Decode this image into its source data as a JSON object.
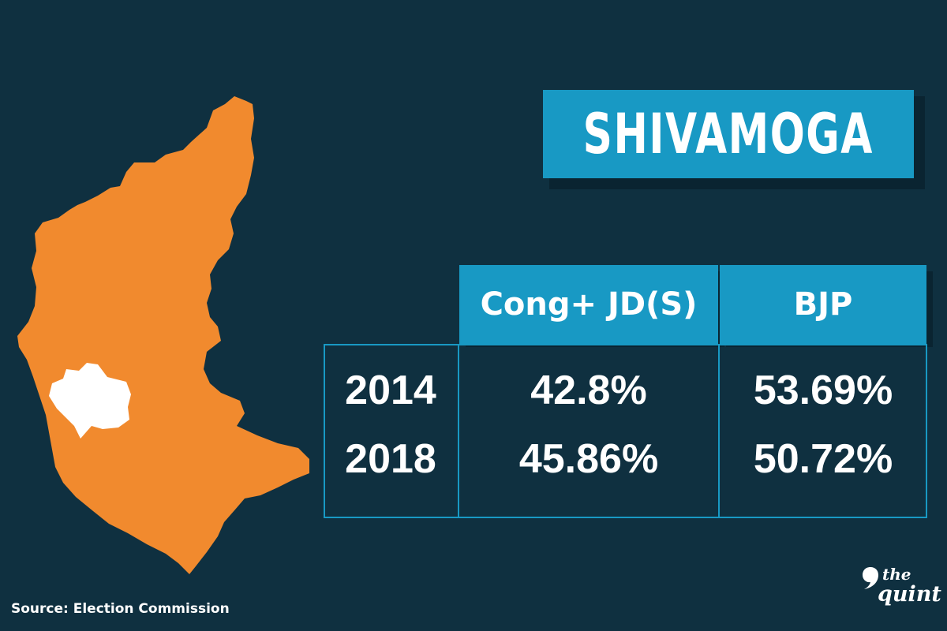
{
  "title": "SHIVAMOGA",
  "colors": {
    "background": "#0f3040",
    "accent": "#1899c4",
    "state_fill": "#f18a2e",
    "highlight_fill": "#ffffff",
    "text": "#ffffff"
  },
  "map": {
    "state_icon": "karnataka-map-icon",
    "highlight_icon": "shivamoga-district-icon"
  },
  "chart_data": {
    "type": "table",
    "columns": [
      "Cong+ JD(S)",
      "BJP"
    ],
    "rows": [
      {
        "year": "2014",
        "values": [
          "42.8%",
          "53.69%"
        ]
      },
      {
        "year": "2018",
        "values": [
          "45.86%",
          "50.72%"
        ]
      }
    ]
  },
  "source": "Source: Election Commission",
  "logo": {
    "line1": "the",
    "line2": "quint"
  }
}
